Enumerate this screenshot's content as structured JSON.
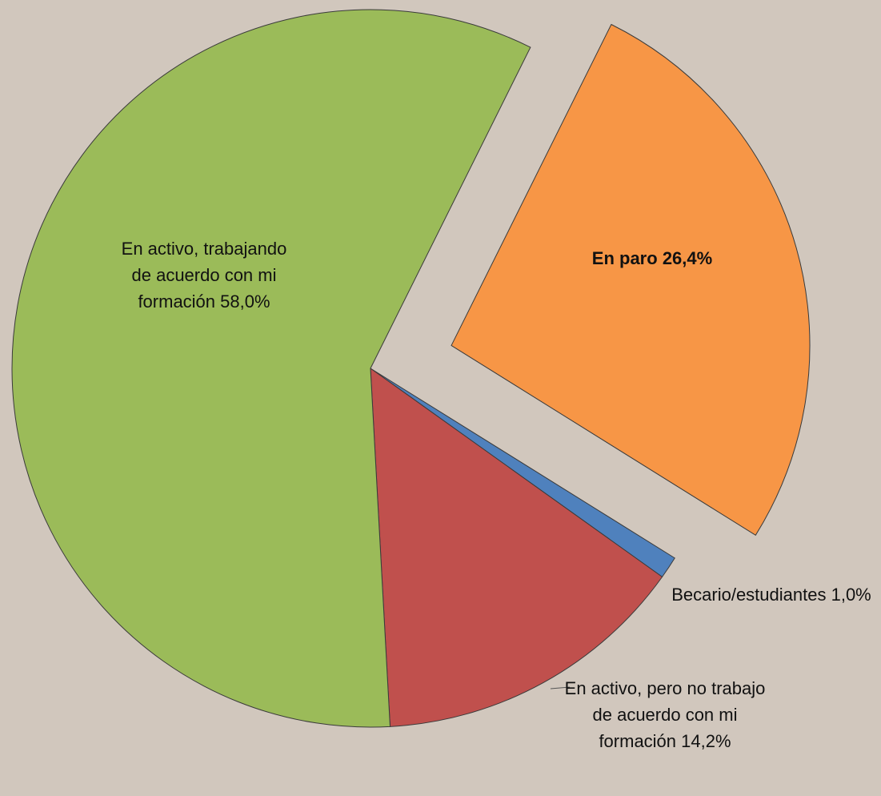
{
  "chart_data": {
    "type": "pie",
    "categories": [
      "En paro",
      "Becario/estudiantes",
      "En activo, pero no trabajo de acuerdo con mi formación",
      "En activo, trabajando de acuerdo con mi formación"
    ],
    "values": [
      26.4,
      1.0,
      14.2,
      58.0
    ],
    "value_labels": [
      "26,4%",
      "1,0%",
      "14,2%",
      "58,0%"
    ],
    "colors": [
      "#f79646",
      "#4f81bd",
      "#c0504d",
      "#9bbb59"
    ],
    "exploded": [
      true,
      false,
      false,
      false
    ]
  }
}
